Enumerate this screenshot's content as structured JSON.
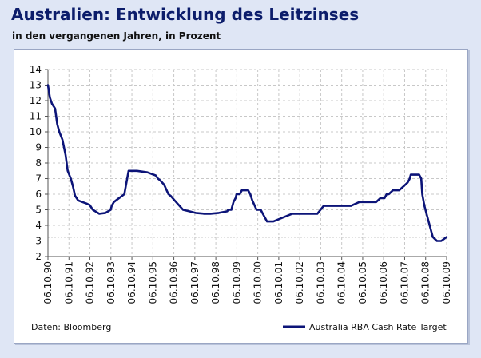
{
  "header": {
    "title": "Australien: Entwicklung des Leitzinses",
    "subtitle": "in den vergangenen Jahren, in Prozent"
  },
  "source": "Daten: Bloomberg",
  "colors": {
    "line": "#0c1478",
    "grid": "#c8c8c8",
    "background": "#dfe6f5"
  },
  "chart_data": {
    "type": "line",
    "title": "Australien: Entwicklung des Leitzinses",
    "subtitle": "in den vergangenen Jahren, in Prozent",
    "xlabel": "",
    "ylabel": "",
    "ylim": [
      2,
      14
    ],
    "yticks": [
      2,
      3,
      4,
      5,
      6,
      7,
      8,
      9,
      10,
      11,
      12,
      13,
      14
    ],
    "xlim": [
      1990.76,
      2009.76
    ],
    "xtick_labels": [
      "06.10.90",
      "06.10.91",
      "06.10.92",
      "06.10.93",
      "06.10.94",
      "06.10.95",
      "06.10.96",
      "06.10.97",
      "06.10.98",
      "06.10.99",
      "06.10.00",
      "06.10.01",
      "06.10.02",
      "06.10.03",
      "06.10.04",
      "06.10.05",
      "06.10.06",
      "06.10.07",
      "06.10.08",
      "06.10.09"
    ],
    "grid": true,
    "legend_position": "bottom-right",
    "reference_line": {
      "y": 3.25,
      "style": "dotted"
    },
    "series": [
      {
        "name": "Australia RBA Cash Rate Target",
        "x": [
          1990.76,
          1990.85,
          1990.95,
          1991.1,
          1991.2,
          1991.3,
          1991.45,
          1991.6,
          1991.7,
          1991.85,
          1991.95,
          1992.05,
          1992.2,
          1992.4,
          1992.6,
          1992.75,
          1992.9,
          1993.2,
          1993.5,
          1993.75,
          1993.8,
          1993.9,
          1994.0,
          1994.2,
          1994.4,
          1994.6,
          1995.0,
          1995.5,
          1995.9,
          1996.0,
          1996.1,
          1996.3,
          1996.5,
          1996.6,
          1996.8,
          1997.2,
          1997.5,
          1997.8,
          1998.2,
          1998.5,
          1998.9,
          1999.3,
          1999.35,
          1999.5,
          1999.6,
          1999.7,
          1999.75,
          1999.9,
          2000.0,
          2000.15,
          2000.3,
          2000.4,
          2000.5,
          2000.7,
          2000.8,
          2000.9,
          2001.0,
          2001.2,
          2001.3,
          2001.5,
          2002.4,
          2002.9,
          2003.0,
          2003.2,
          2003.6,
          2003.9,
          2004.0,
          2004.5,
          2005.2,
          2005.6,
          2006.0,
          2006.3,
          2006.4,
          2006.6,
          2006.8,
          2006.9,
          2007.0,
          2007.2,
          2007.4,
          2007.5,
          2007.7,
          2007.9,
          2008.0,
          2008.05,
          2008.15,
          2008.25,
          2008.35,
          2008.45,
          2008.55,
          2008.6,
          2008.7,
          2008.9,
          2009.1,
          2009.3,
          2009.5,
          2009.76
        ],
        "values": [
          13.0,
          12.2,
          11.8,
          11.5,
          10.5,
          10.0,
          9.5,
          8.5,
          7.5,
          7.0,
          6.5,
          5.9,
          5.6,
          5.5,
          5.4,
          5.3,
          5.0,
          4.75,
          4.8,
          5.0,
          5.25,
          5.5,
          5.6,
          5.8,
          6.0,
          7.5,
          7.5,
          7.4,
          7.2,
          7.0,
          6.9,
          6.6,
          6.0,
          5.9,
          5.6,
          5.0,
          4.9,
          4.8,
          4.75,
          4.75,
          4.8,
          4.9,
          5.0,
          5.0,
          5.5,
          5.75,
          6.0,
          6.0,
          6.25,
          6.25,
          6.25,
          6.0,
          5.6,
          5.0,
          5.0,
          5.0,
          4.75,
          4.25,
          4.25,
          4.25,
          4.75,
          4.75,
          4.75,
          4.75,
          4.75,
          5.25,
          5.25,
          5.25,
          5.25,
          5.5,
          5.5,
          5.5,
          5.5,
          5.75,
          5.75,
          6.0,
          6.0,
          6.25,
          6.25,
          6.25,
          6.5,
          6.75,
          7.0,
          7.25,
          7.25,
          7.25,
          7.25,
          7.25,
          7.0,
          6.0,
          5.25,
          4.25,
          3.25,
          3.0,
          3.0,
          3.25
        ]
      }
    ]
  }
}
